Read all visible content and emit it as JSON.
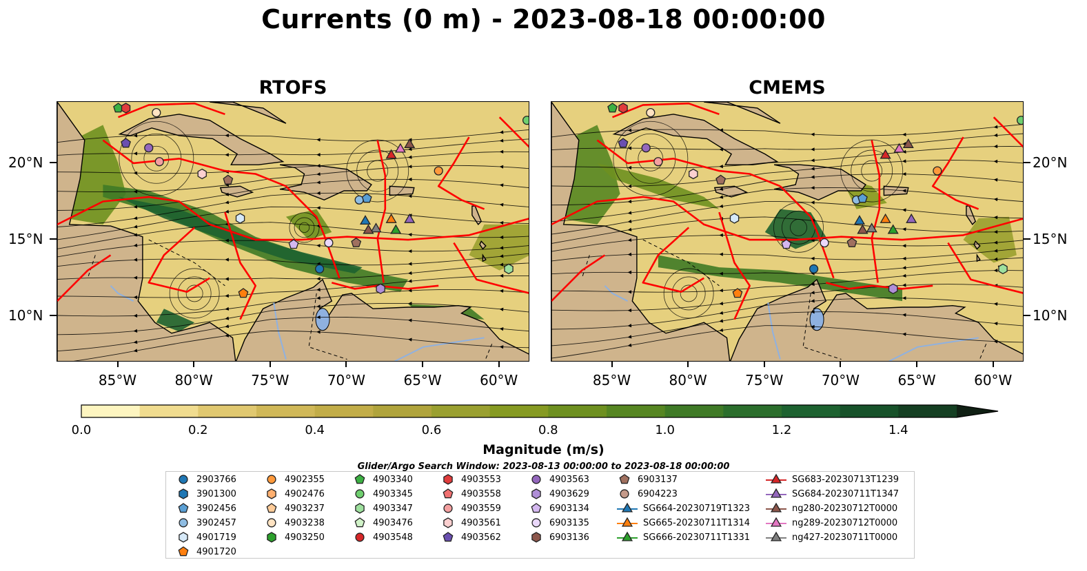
{
  "title": "Currents (0 m) - 2023-08-18 00:00:00",
  "panels": [
    {
      "title": "RTOFS"
    },
    {
      "title": "CMEMS"
    }
  ],
  "axes": {
    "x_ticks": [
      "85°W",
      "80°W",
      "75°W",
      "70°W",
      "65°W",
      "60°W"
    ],
    "y_ticks": [
      "20°N",
      "15°N",
      "10°N"
    ]
  },
  "colorbar": {
    "label": "Magnitude (m/s)",
    "ticks": [
      "0.0",
      "0.2",
      "0.4",
      "0.6",
      "0.8",
      "1.0",
      "1.2",
      "1.4"
    ],
    "min": 0.0,
    "max": 1.5,
    "extend": "max",
    "colors": [
      "#fdf5c0",
      "#f0dc8f",
      "#e0c870",
      "#d0b858",
      "#c2ad48",
      "#b0a43c",
      "#9aa030",
      "#869a22",
      "#6e9020",
      "#568622",
      "#3f7a26",
      "#2b6e2c",
      "#1d6230",
      "#17522a",
      "#143f22",
      "#12301a",
      "#102014"
    ]
  },
  "search_window": "Glider/Argo Search Window: 2023-08-13 00:00:00 to 2023-08-18 00:00:00",
  "legend": {
    "columns": [
      [
        {
          "label": "2903766",
          "marker": "circle",
          "color": "#1f77b4"
        },
        {
          "label": "3901300",
          "marker": "hexagon",
          "color": "#1f77b4"
        },
        {
          "label": "3902456",
          "marker": "pentagon",
          "color": "#5a9fd4"
        },
        {
          "label": "3902457",
          "marker": "circle",
          "color": "#8fbde3"
        },
        {
          "label": "4901719",
          "marker": "hexagon",
          "color": "#d6e9f8"
        },
        {
          "label": "4901720",
          "marker": "pentagon",
          "color": "#ff7f0e"
        }
      ],
      [
        {
          "label": "4902355",
          "marker": "circle",
          "color": "#ff9a3c"
        },
        {
          "label": "4902476",
          "marker": "hexagon",
          "color": "#ffb070"
        },
        {
          "label": "4903237",
          "marker": "pentagon",
          "color": "#ffcc99"
        },
        {
          "label": "4903238",
          "marker": "circle",
          "color": "#ffe3c2"
        },
        {
          "label": "4903250",
          "marker": "hexagon",
          "color": "#2ca02c"
        }
      ],
      [
        {
          "label": "4903340",
          "marker": "pentagon",
          "color": "#3cb043"
        },
        {
          "label": "4903345",
          "marker": "circle",
          "color": "#6fcf6f"
        },
        {
          "label": "4903347",
          "marker": "hexagon",
          "color": "#9ee09e"
        },
        {
          "label": "4903476",
          "marker": "pentagon",
          "color": "#d0f2c8"
        },
        {
          "label": "4903548",
          "marker": "circle",
          "color": "#d62728"
        }
      ],
      [
        {
          "label": "4903553",
          "marker": "hexagon",
          "color": "#e03c3c"
        },
        {
          "label": "4903558",
          "marker": "pentagon",
          "color": "#f07070"
        },
        {
          "label": "4903559",
          "marker": "circle",
          "color": "#f4a0a0"
        },
        {
          "label": "4903561",
          "marker": "hexagon",
          "color": "#fcd0d0"
        },
        {
          "label": "4903562",
          "marker": "pentagon",
          "color": "#6a4fb0"
        }
      ],
      [
        {
          "label": "4903563",
          "marker": "circle",
          "color": "#9467bd"
        },
        {
          "label": "4903629",
          "marker": "hexagon",
          "color": "#b08fd8"
        },
        {
          "label": "6903134",
          "marker": "pentagon",
          "color": "#d4b8f0"
        },
        {
          "label": "6903135",
          "marker": "circle",
          "color": "#ead8fb"
        },
        {
          "label": "6903136",
          "marker": "hexagon",
          "color": "#8c564b"
        }
      ],
      [
        {
          "label": "6903137",
          "marker": "pentagon",
          "color": "#a0705f"
        },
        {
          "label": "6904223",
          "marker": "circle",
          "color": "#c49a8a"
        },
        {
          "label": "SG664-20230719T1323",
          "marker": "triangle-line",
          "color": "#1f77b4"
        },
        {
          "label": "SG665-20230711T1314",
          "marker": "triangle-line",
          "color": "#ff7f0e"
        },
        {
          "label": "SG666-20230711T1331",
          "marker": "triangle-line",
          "color": "#2ca02c"
        }
      ],
      [
        {
          "label": "SG683-20230713T1239",
          "marker": "triangle-line",
          "color": "#d62728"
        },
        {
          "label": "SG684-20230711T1347",
          "marker": "triangle-line",
          "color": "#9467bd"
        },
        {
          "label": "ng280-20230712T0000",
          "marker": "triangle-line",
          "color": "#8c564b"
        },
        {
          "label": "ng289-20230712T0000",
          "marker": "triangle-line",
          "color": "#e377c2"
        },
        {
          "label": "ng427-20230711T0000",
          "marker": "triangle-line",
          "color": "#7f7f7f"
        }
      ]
    ]
  },
  "colors": {
    "land": "#cfb48c",
    "eez_lines": "#ff0000",
    "rivers": "#9bb8e0",
    "streamlines": "#000000"
  },
  "map_data": {
    "lon_range": [
      -89,
      -58
    ],
    "lat_range": [
      7,
      24
    ],
    "markers_rtofs": [
      {
        "lon": -85,
        "lat": 23.6,
        "color": "#3cb043",
        "shape": "pentagon"
      },
      {
        "lon": -84.5,
        "lat": 23.6,
        "color": "#e03c3c",
        "shape": "hexagon"
      },
      {
        "lon": -82.5,
        "lat": 23.3,
        "color": "#ffe3c2",
        "shape": "circle"
      },
      {
        "lon": -84.5,
        "lat": 21.3,
        "color": "#6a4fb0",
        "shape": "pentagon"
      },
      {
        "lon": -83,
        "lat": 21.0,
        "color": "#9467bd",
        "shape": "circle"
      },
      {
        "lon": -82.3,
        "lat": 20.1,
        "color": "#f4a0a0",
        "shape": "circle"
      },
      {
        "lon": -79.5,
        "lat": 19.3,
        "color": "#fcd0d0",
        "shape": "hexagon"
      },
      {
        "lon": -77.8,
        "lat": 18.9,
        "color": "#a0705f",
        "shape": "pentagon"
      },
      {
        "lon": -77,
        "lat": 16.4,
        "color": "#d6e9f8",
        "shape": "hexagon"
      },
      {
        "lon": -73.5,
        "lat": 14.7,
        "color": "#d4b8f0",
        "shape": "pentagon"
      },
      {
        "lon": -71.2,
        "lat": 14.8,
        "color": "#ead8fb",
        "shape": "circle"
      },
      {
        "lon": -71.8,
        "lat": 13.1,
        "color": "#1f77b4",
        "shape": "circle"
      },
      {
        "lon": -69.2,
        "lat": 17.6,
        "color": "#8fbde3",
        "shape": "circle"
      },
      {
        "lon": -68.7,
        "lat": 17.7,
        "color": "#5a9fd4",
        "shape": "pentagon"
      },
      {
        "lon": -69.4,
        "lat": 14.8,
        "color": "#a0705f",
        "shape": "pentagon"
      },
      {
        "lon": -67.8,
        "lat": 11.8,
        "color": "#b08fd8",
        "shape": "hexagon"
      },
      {
        "lon": -76.8,
        "lat": 11.5,
        "color": "#ff7f0e",
        "shape": "pentagon"
      },
      {
        "lon": -64,
        "lat": 19.5,
        "color": "#ff9a3c",
        "shape": "circle"
      },
      {
        "lon": -58.2,
        "lat": 22.8,
        "color": "#6fcf6f",
        "shape": "circle"
      },
      {
        "lon": -59.4,
        "lat": 13.1,
        "color": "#9ee09e",
        "shape": "hexagon"
      },
      {
        "lon": -67.1,
        "lat": 20.5,
        "color": "#d62728",
        "shape": "triangle"
      },
      {
        "lon": -66.5,
        "lat": 20.9,
        "color": "#e377c2",
        "shape": "triangle"
      },
      {
        "lon": -65.9,
        "lat": 21.2,
        "color": "#8c564b",
        "shape": "triangle"
      },
      {
        "lon": -68.8,
        "lat": 16.2,
        "color": "#1f77b4",
        "shape": "triangle"
      },
      {
        "lon": -68.1,
        "lat": 15.7,
        "color": "#7f7f7f",
        "shape": "triangle"
      },
      {
        "lon": -68.6,
        "lat": 15.6,
        "color": "#8c564b",
        "shape": "triangle"
      },
      {
        "lon": -67.1,
        "lat": 16.3,
        "color": "#ff7f0e",
        "shape": "triangle"
      },
      {
        "lon": -66.8,
        "lat": 15.6,
        "color": "#2ca02c",
        "shape": "triangle"
      },
      {
        "lon": -65.9,
        "lat": 16.3,
        "color": "#9467bd",
        "shape": "triangle"
      }
    ],
    "markers_cmems": [
      {
        "lon": -85,
        "lat": 23.6,
        "color": "#3cb043",
        "shape": "pentagon"
      },
      {
        "lon": -84.3,
        "lat": 23.6,
        "color": "#e03c3c",
        "shape": "hexagon"
      },
      {
        "lon": -82.5,
        "lat": 23.3,
        "color": "#ffe3c2",
        "shape": "circle"
      },
      {
        "lon": -84.3,
        "lat": 21.3,
        "color": "#6a4fb0",
        "shape": "pentagon"
      },
      {
        "lon": -82.8,
        "lat": 21.0,
        "color": "#9467bd",
        "shape": "circle"
      },
      {
        "lon": -82,
        "lat": 20.1,
        "color": "#f4a0a0",
        "shape": "circle"
      },
      {
        "lon": -79.7,
        "lat": 19.3,
        "color": "#fcd0d0",
        "shape": "hexagon"
      },
      {
        "lon": -77.9,
        "lat": 18.9,
        "color": "#a0705f",
        "shape": "pentagon"
      },
      {
        "lon": -77,
        "lat": 16.4,
        "color": "#d6e9f8",
        "shape": "hexagon"
      },
      {
        "lon": -73.6,
        "lat": 14.7,
        "color": "#d4b8f0",
        "shape": "pentagon"
      },
      {
        "lon": -71.1,
        "lat": 14.8,
        "color": "#ead8fb",
        "shape": "circle"
      },
      {
        "lon": -71.8,
        "lat": 13.1,
        "color": "#1f77b4",
        "shape": "circle"
      },
      {
        "lon": -69.0,
        "lat": 17.6,
        "color": "#8fbde3",
        "shape": "circle"
      },
      {
        "lon": -68.6,
        "lat": 17.7,
        "color": "#5a9fd4",
        "shape": "pentagon"
      },
      {
        "lon": -69.3,
        "lat": 14.8,
        "color": "#a0705f",
        "shape": "pentagon"
      },
      {
        "lon": -66.6,
        "lat": 11.8,
        "color": "#b08fd8",
        "shape": "hexagon"
      },
      {
        "lon": -76.8,
        "lat": 11.5,
        "color": "#ff7f0e",
        "shape": "pentagon"
      },
      {
        "lon": -63.7,
        "lat": 19.5,
        "color": "#ff9a3c",
        "shape": "circle"
      },
      {
        "lon": -58.2,
        "lat": 22.8,
        "color": "#6fcf6f",
        "shape": "circle"
      },
      {
        "lon": -59.4,
        "lat": 13.1,
        "color": "#9ee09e",
        "shape": "hexagon"
      },
      {
        "lon": -67.1,
        "lat": 20.5,
        "color": "#d62728",
        "shape": "triangle"
      },
      {
        "lon": -66.2,
        "lat": 20.9,
        "color": "#e377c2",
        "shape": "triangle"
      },
      {
        "lon": -65.6,
        "lat": 21.2,
        "color": "#8c564b",
        "shape": "triangle"
      },
      {
        "lon": -68.8,
        "lat": 16.2,
        "color": "#1f77b4",
        "shape": "triangle"
      },
      {
        "lon": -68.0,
        "lat": 15.7,
        "color": "#7f7f7f",
        "shape": "triangle"
      },
      {
        "lon": -68.6,
        "lat": 15.6,
        "color": "#8c564b",
        "shape": "triangle"
      },
      {
        "lon": -67.1,
        "lat": 16.3,
        "color": "#ff7f0e",
        "shape": "triangle"
      },
      {
        "lon": -66.6,
        "lat": 15.6,
        "color": "#2ca02c",
        "shape": "triangle"
      },
      {
        "lon": -65.4,
        "lat": 16.3,
        "color": "#9467bd",
        "shape": "triangle"
      }
    ]
  }
}
